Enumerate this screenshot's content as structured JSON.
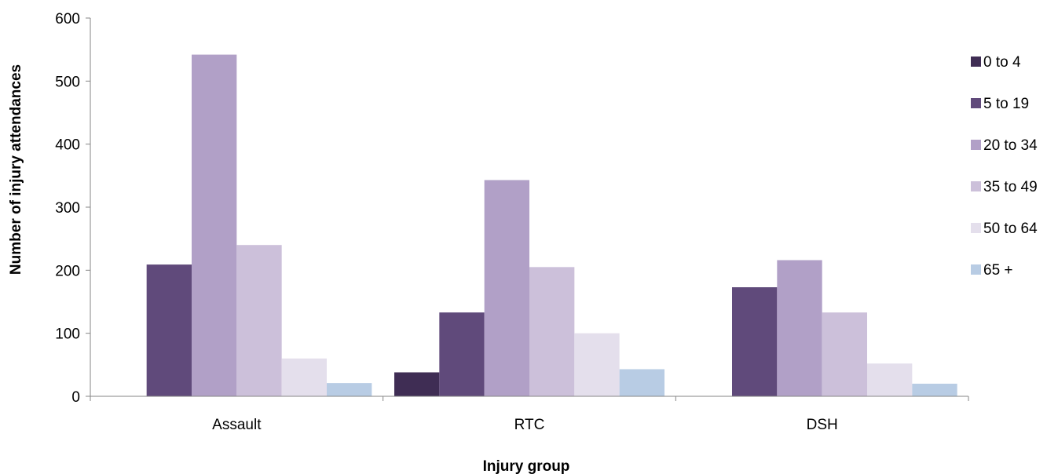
{
  "chart_data": {
    "type": "bar",
    "title": "",
    "xlabel": "Injury group",
    "ylabel": "Number of injury attendances",
    "ylim": [
      0,
      600
    ],
    "yticks": [
      0,
      100,
      200,
      300,
      400,
      500,
      600
    ],
    "categories": [
      "Assault",
      "RTC",
      "DSH"
    ],
    "series": [
      {
        "name": "0 to 4",
        "color": "#3f2d54",
        "values": [
          0,
          38,
          0
        ]
      },
      {
        "name": "5 to 19",
        "color": "#604a7b",
        "values": [
          209,
          133,
          173
        ]
      },
      {
        "name": "20 to 34",
        "color": "#b1a0c7",
        "values": [
          542,
          343,
          216
        ]
      },
      {
        "name": "35 to 49",
        "color": "#ccc0da",
        "values": [
          240,
          205,
          133
        ]
      },
      {
        "name": "50 to 64",
        "color": "#e4dfec",
        "values": [
          60,
          100,
          52
        ]
      },
      {
        "name": "65 +",
        "color": "#b8cce4",
        "values": [
          21,
          43,
          20
        ]
      }
    ],
    "legend_position": "right",
    "grid": false
  }
}
